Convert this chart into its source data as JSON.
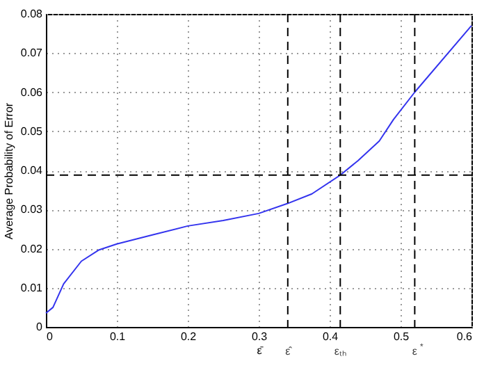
{
  "chart_data": {
    "type": "line",
    "ylabel": "Average Probability of Error",
    "x": [
      0,
      0.01,
      0.025,
      0.05,
      0.075,
      0.1,
      0.15,
      0.2,
      0.25,
      0.3,
      0.34,
      0.375,
      0.415,
      0.44,
      0.47,
      0.49,
      0.52,
      0.6
    ],
    "series": [
      {
        "color": "#3333ee",
        "values": [
          0.0035,
          0.005,
          0.011,
          0.0168,
          0.0197,
          0.0212,
          0.0235,
          0.0258,
          0.0272,
          0.029,
          0.0315,
          0.034,
          0.0388,
          0.0425,
          0.0475,
          0.053,
          0.06,
          0.077
        ]
      }
    ],
    "xlim": [
      0,
      0.6
    ],
    "xticks": [
      0,
      0.1,
      0.2,
      {
        "value": 0.3,
        "label": "0.3\nε̄"
      },
      0.4,
      0.5,
      0.6
    ],
    "ylim": [
      0,
      0.08
    ],
    "yticks": [
      0,
      0.01,
      0.02,
      0.03,
      0.04,
      0.05,
      0.06,
      0.07,
      0.08
    ],
    "grid": true,
    "line_style": "solid",
    "marker": "none",
    "ref_lines": [
      {
        "axis": "x",
        "value": 0.341,
        "label": "ε̂",
        "line_style": "dashed",
        "color": "#000000"
      },
      {
        "axis": "x",
        "value": 0.415,
        "label": "εₜₕ",
        "line_style": "dashed",
        "color": "#000000"
      },
      {
        "axis": "x",
        "value": 0.52,
        "label": "ε$^{*}$",
        "line_style": "dashed",
        "color": "#000000"
      },
      {
        "axis": "y",
        "value": 0.0388,
        "line_style": "dashed",
        "color": "#000000"
      }
    ]
  }
}
